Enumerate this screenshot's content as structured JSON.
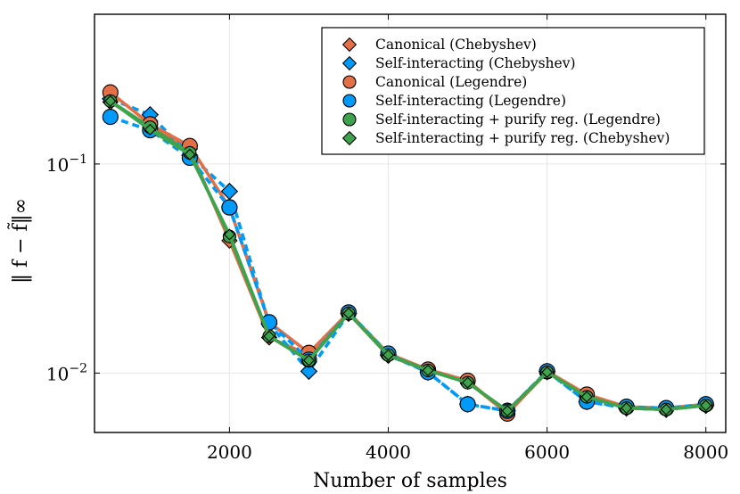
{
  "chart_data": {
    "type": "line",
    "xlabel": "Number of samples",
    "ylabel": "‖ f − f̃‖∞",
    "xlim": [
      300,
      8250
    ],
    "ylim": [
      0.0052,
      0.52
    ],
    "yscale": "log",
    "grid": true,
    "legend_position": "top-right",
    "x_ticks": [
      2000,
      4000,
      6000,
      8000
    ],
    "x_tick_labels": [
      "2000",
      "4000",
      "6000",
      "8000"
    ],
    "y_ticks": [
      {
        "value": 0.1,
        "base": "10",
        "exp": "−1"
      },
      {
        "value": 0.01,
        "base": "10",
        "exp": "−2"
      }
    ],
    "x": [
      500,
      1000,
      1500,
      2000,
      2500,
      3000,
      3500,
      4000,
      4500,
      5000,
      5500,
      6000,
      6500,
      7000,
      7500,
      8000
    ],
    "series": [
      {
        "name": "Canonical (Chebyshev)",
        "color": "#e26f46",
        "marker": "diamond",
        "dashed": false,
        "values": [
          0.198,
          0.15,
          0.118,
          0.043,
          0.0148,
          0.0122,
          0.0193,
          0.0121,
          0.0103,
          0.0091,
          0.0064,
          0.0101,
          0.0078,
          0.0068,
          0.0067,
          0.007
        ]
      },
      {
        "name": "Self-interacting (Chebyshev)",
        "color": "#009af9",
        "marker": "diamond",
        "dashed": true,
        "values": [
          0.205,
          0.172,
          0.11,
          0.074,
          0.0172,
          0.0102,
          0.0193,
          0.0122,
          0.0101,
          0.0071,
          0.0066,
          0.0102,
          0.0073,
          0.0068,
          0.0067,
          0.007
        ]
      },
      {
        "name": "Canonical (Legendre)",
        "color": "#e26f46",
        "marker": "circle",
        "dashed": false,
        "values": [
          0.22,
          0.155,
          0.122,
          0.062,
          0.0175,
          0.0125,
          0.0195,
          0.0124,
          0.0104,
          0.0092,
          0.0064,
          0.0102,
          0.0079,
          0.0069,
          0.0068,
          0.0071
        ]
      },
      {
        "name": "Self-interacting (Legendre)",
        "color": "#009af9",
        "marker": "circle",
        "dashed": true,
        "values": [
          0.168,
          0.145,
          0.107,
          0.062,
          0.0175,
          0.0116,
          0.0195,
          0.0124,
          0.0101,
          0.0071,
          0.0066,
          0.0102,
          0.0073,
          0.0069,
          0.0068,
          0.0071
        ]
      },
      {
        "name": "Self-interacting + purify reg. (Legendre)",
        "color": "#3da44d",
        "marker": "circle",
        "dashed": false,
        "values": [
          0.2,
          0.15,
          0.113,
          0.045,
          0.015,
          0.0115,
          0.0193,
          0.0122,
          0.0103,
          0.009,
          0.0066,
          0.0101,
          0.0077,
          0.0068,
          0.0067,
          0.007
        ]
      },
      {
        "name": "Self-interacting + purify reg. (Chebyshev)",
        "color": "#3da44d",
        "marker": "diamond",
        "dashed": false,
        "values": [
          0.2,
          0.146,
          0.111,
          0.046,
          0.015,
          0.0115,
          0.0193,
          0.0122,
          0.0103,
          0.009,
          0.0066,
          0.0101,
          0.0077,
          0.0068,
          0.0067,
          0.007
        ]
      }
    ]
  }
}
